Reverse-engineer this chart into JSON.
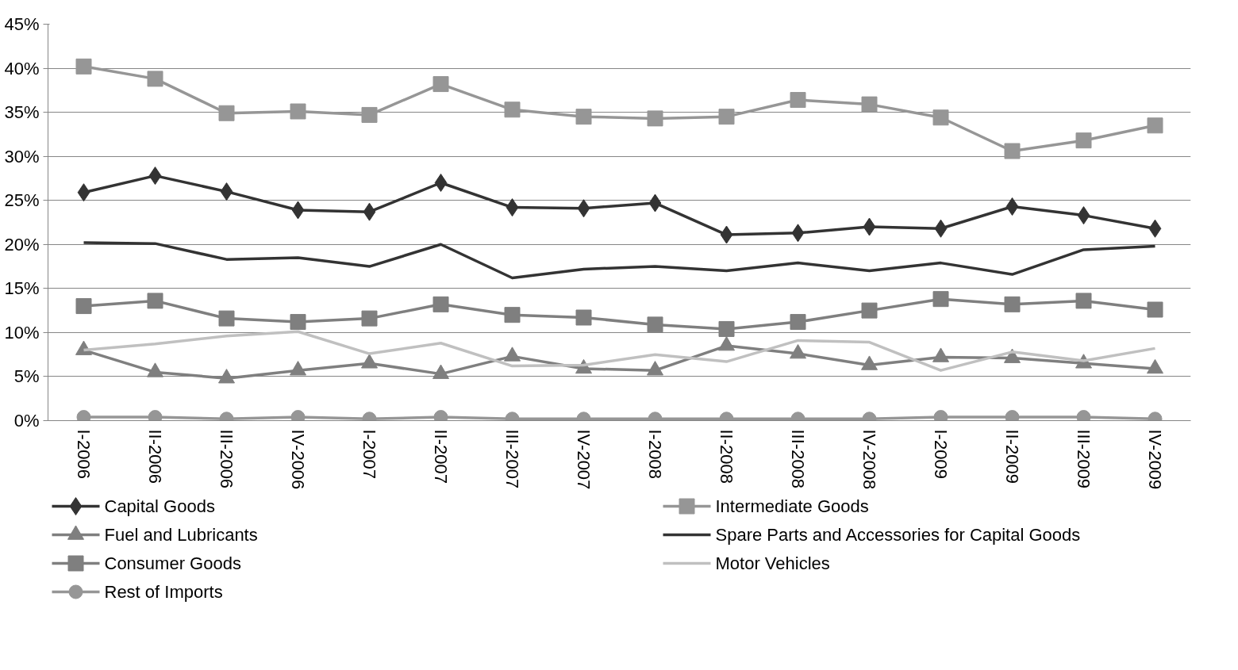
{
  "chart_data": {
    "type": "line",
    "categories": [
      "I-2006",
      "II-2006",
      "III-2006",
      "IV-2006",
      "I-2007",
      "II-2007",
      "III-2007",
      "IV-2007",
      "I-2008",
      "II-2008",
      "III-2008",
      "IV-2008",
      "I-2009",
      "II-2009",
      "III-2009",
      "IV-2009"
    ],
    "ylim": [
      0,
      45
    ],
    "yticks": [
      {
        "value": 0,
        "label": "0%"
      },
      {
        "value": 5,
        "label": "5%"
      },
      {
        "value": 10,
        "label": "10%"
      },
      {
        "value": 15,
        "label": "15%"
      },
      {
        "value": 20,
        "label": "20%"
      },
      {
        "value": 25,
        "label": "25%"
      },
      {
        "value": 30,
        "label": "30%"
      },
      {
        "value": 35,
        "label": "35%"
      },
      {
        "value": 40,
        "label": "40%"
      },
      {
        "value": 45,
        "label": "45%"
      }
    ],
    "grid": "y",
    "legend": "bottom",
    "line_style": "solid",
    "series": [
      {
        "name": "Capital Goods",
        "color": "#333333",
        "marker": "diamond",
        "values": [
          25.9,
          27.8,
          26.0,
          23.9,
          23.7,
          27.0,
          24.2,
          24.1,
          24.7,
          21.1,
          21.3,
          22.0,
          21.8,
          24.3,
          23.3,
          21.8
        ]
      },
      {
        "name": "Intermediate Goods",
        "color": "#969696",
        "marker": "square",
        "values": [
          40.2,
          38.8,
          34.9,
          35.1,
          34.7,
          38.2,
          35.3,
          34.5,
          34.3,
          34.5,
          36.4,
          35.9,
          34.4,
          30.6,
          31.8,
          33.5
        ]
      },
      {
        "name": "Fuel and Lubricants",
        "color": "#7f7f7f",
        "marker": "triangle",
        "values": [
          8.0,
          5.5,
          4.8,
          5.7,
          6.5,
          5.3,
          7.3,
          5.9,
          5.7,
          8.5,
          7.6,
          6.3,
          7.2,
          7.1,
          6.5,
          5.9
        ]
      },
      {
        "name": "Spare Parts and Accessories for Capital Goods",
        "color": "#333333",
        "marker": "none",
        "values": [
          20.2,
          20.1,
          18.3,
          18.5,
          17.5,
          20.0,
          16.2,
          17.2,
          17.5,
          17.0,
          17.9,
          17.0,
          17.9,
          16.6,
          19.4,
          19.8
        ]
      },
      {
        "name": "Consumer Goods",
        "color": "#7f7f7f",
        "marker": "square",
        "values": [
          13.0,
          13.6,
          11.6,
          11.2,
          11.6,
          13.2,
          12.0,
          11.7,
          10.9,
          10.4,
          11.2,
          12.5,
          13.8,
          13.2,
          13.6,
          12.6
        ]
      },
      {
        "name": " Motor Vehicles",
        "color": "#c0c0c0",
        "marker": "none",
        "values": [
          8.0,
          8.7,
          9.6,
          10.1,
          7.6,
          8.8,
          6.2,
          6.3,
          7.5,
          6.7,
          9.1,
          8.9,
          5.7,
          7.8,
          6.8,
          8.2
        ]
      },
      {
        "name": "Rest of Imports",
        "color": "#969696",
        "marker": "circle",
        "values": [
          0.4,
          0.4,
          0.2,
          0.4,
          0.2,
          0.4,
          0.2,
          0.2,
          0.2,
          0.2,
          0.2,
          0.2,
          0.4,
          0.4,
          0.4,
          0.2
        ]
      }
    ]
  }
}
